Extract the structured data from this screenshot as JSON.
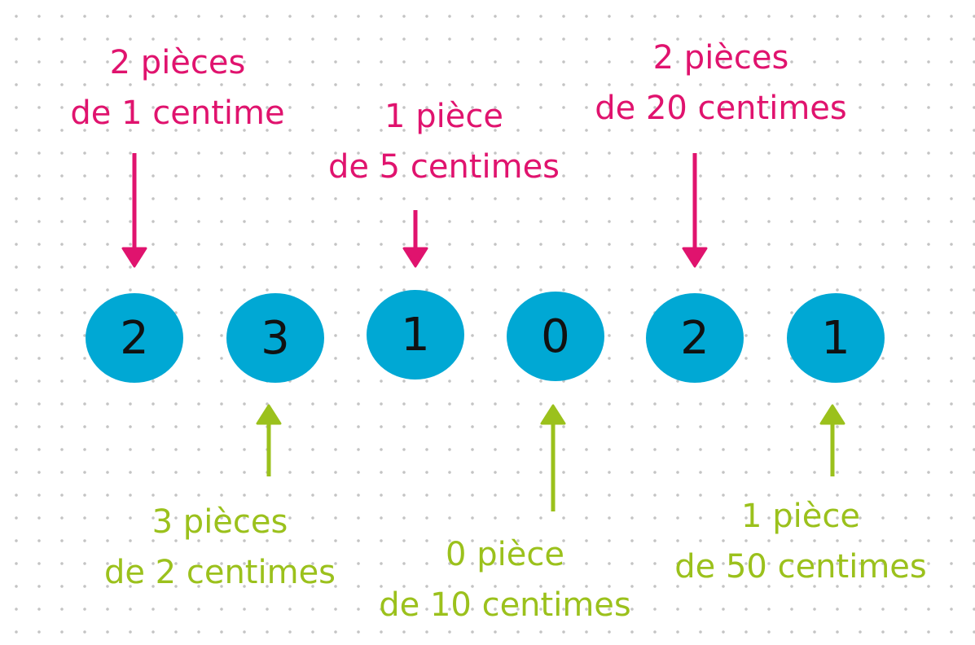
{
  "colors": {
    "top_labels": "#e0136e",
    "bottom_labels": "#9bc11c",
    "digit_circle": "#00a8d4"
  },
  "digits": [
    "2",
    "3",
    "1",
    "0",
    "2",
    "1"
  ],
  "top_labels": [
    {
      "line1": "2 pièces",
      "line2": "de 1 centime",
      "digit_index": 0
    },
    {
      "line1": "1 pièce",
      "line2": "de 5 centimes",
      "digit_index": 2
    },
    {
      "line1": "2 pièces",
      "line2": "de 20 centimes",
      "digit_index": 4
    }
  ],
  "bottom_labels": [
    {
      "line1": "3 pièces",
      "line2": "de 2 centimes",
      "digit_index": 1
    },
    {
      "line1": "0 pièce",
      "line2": "de 10 centimes",
      "digit_index": 3
    },
    {
      "line1": "1 pièce",
      "line2": "de 50 centimes",
      "digit_index": 5
    }
  ]
}
